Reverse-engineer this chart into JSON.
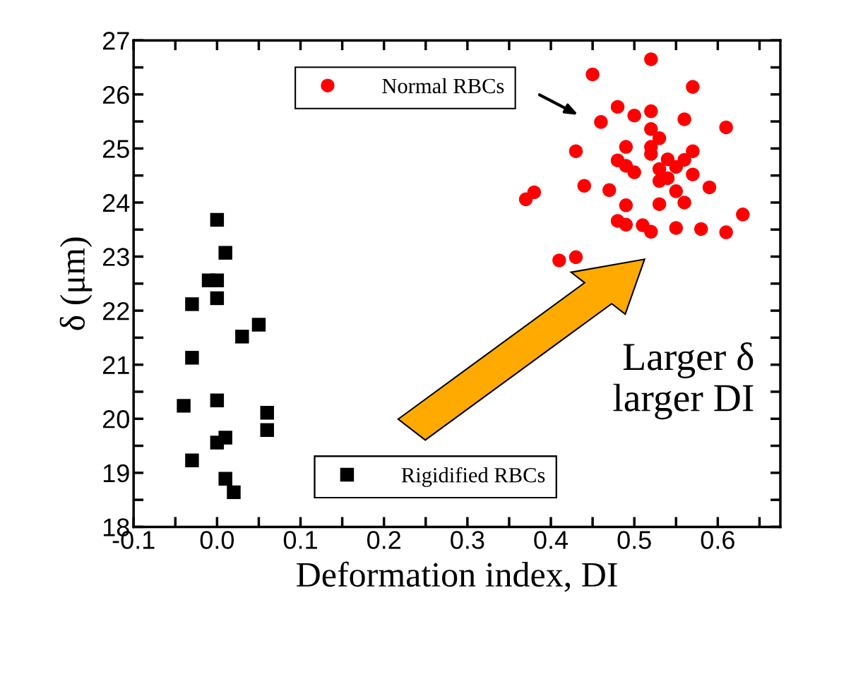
{
  "chart_data": {
    "type": "scatter",
    "xlabel": "Deformation index, DI",
    "ylabel": "δ (μm)",
    "xlim": [
      -0.1,
      0.675
    ],
    "ylim": [
      18,
      27
    ],
    "xticks": [
      -0.1,
      {
        "value": -0.05,
        "label": null
      },
      {
        "value": 0,
        "label": "0.0"
      },
      {
        "value": 0.05,
        "label": null
      },
      0.1,
      {
        "value": 0.15,
        "label": null
      },
      0.2,
      {
        "value": 0.25,
        "label": null
      },
      0.3,
      {
        "value": 0.35,
        "label": null
      },
      0.4,
      {
        "value": 0.45,
        "label": null
      },
      0.5,
      {
        "value": 0.55,
        "label": null
      },
      0.6,
      {
        "value": 0.65,
        "label": null
      }
    ],
    "yticks": [
      18,
      {
        "value": 18.5,
        "label": null
      },
      19,
      {
        "value": 19.5,
        "label": null
      },
      20,
      {
        "value": 20.5,
        "label": null
      },
      21,
      {
        "value": 21.5,
        "label": null
      },
      22,
      {
        "value": 22.5,
        "label": null
      },
      23,
      {
        "value": 23.5,
        "label": null
      },
      24,
      {
        "value": 24.5,
        "label": null
      },
      25,
      {
        "value": 25.5,
        "label": null
      },
      26,
      {
        "value": 26.5,
        "label": null
      },
      27
    ],
    "grid": false,
    "legend": "top",
    "annotations": [
      "Larger δ\nlarger DI"
    ],
    "series": [
      {
        "name": "Normal RBCs",
        "color": "#ff0000",
        "marker": "circle",
        "x": [
          0.52,
          0.45,
          0.57,
          0.48,
          0.5,
          0.52,
          0.46,
          0.56,
          0.61,
          0.52,
          0.53,
          0.43,
          0.49,
          0.52,
          0.57,
          0.48,
          0.49,
          0.5,
          0.52,
          0.54,
          0.53,
          0.56,
          0.55,
          0.57,
          0.54,
          0.53,
          0.44,
          0.47,
          0.55,
          0.59,
          0.37,
          0.38,
          0.56,
          0.49,
          0.53,
          0.48,
          0.49,
          0.51,
          0.52,
          0.55,
          0.58,
          0.61,
          0.63,
          0.41,
          0.43
        ],
        "values": [
          26.65,
          26.37,
          26.14,
          25.77,
          25.61,
          25.69,
          25.49,
          25.54,
          25.39,
          25.36,
          25.19,
          24.95,
          25.03,
          25.03,
          24.95,
          24.78,
          24.68,
          24.56,
          24.9,
          24.8,
          24.62,
          24.79,
          24.66,
          24.52,
          24.45,
          24.4,
          24.31,
          24.23,
          24.21,
          24.28,
          24.06,
          24.19,
          24.0,
          23.95,
          23.97,
          23.66,
          23.59,
          23.58,
          23.46,
          23.53,
          23.51,
          23.45,
          23.78,
          22.93,
          22.99
        ]
      },
      {
        "name": "Rigidified RBCs",
        "color": "#000000",
        "marker": "square",
        "x": [
          0.0,
          0.01,
          -0.01,
          0.0,
          0.0,
          -0.03,
          0.05,
          0.03,
          -0.03,
          -0.04,
          0.0,
          0.06,
          0.06,
          0.01,
          0.0,
          -0.03,
          0.01,
          0.02
        ],
        "values": [
          23.68,
          23.07,
          22.56,
          22.56,
          22.23,
          22.12,
          21.74,
          21.52,
          21.13,
          20.24,
          20.34,
          20.11,
          19.79,
          19.65,
          19.56,
          19.23,
          18.89,
          18.64
        ]
      }
    ]
  }
}
